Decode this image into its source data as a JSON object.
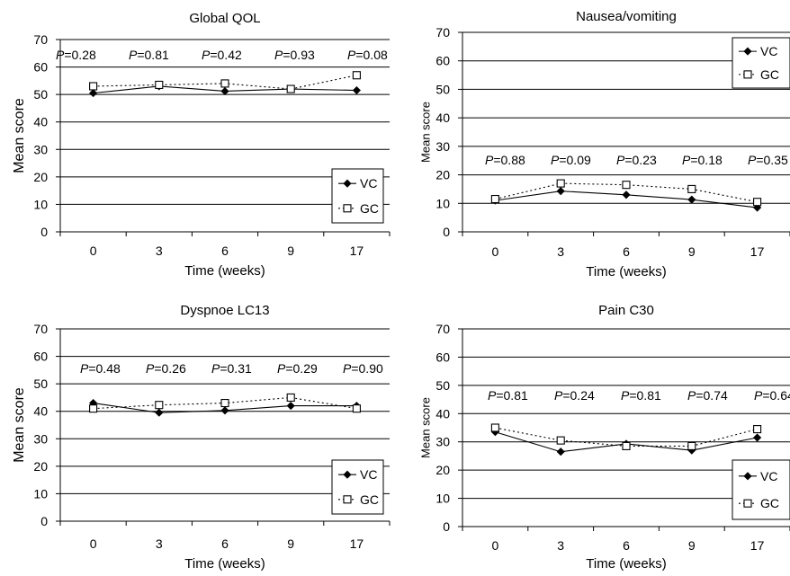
{
  "chart_data": [
    {
      "type": "line",
      "title": "Global QOL",
      "xlabel": "Time (weeks)",
      "ylabel": "Mean score",
      "ylim": [
        0,
        70
      ],
      "yticks": [
        "0",
        "10",
        "20",
        "30",
        "40",
        "50",
        "60",
        "70"
      ],
      "categories": [
        "0",
        "3",
        "6",
        "9",
        "17"
      ],
      "grid": true,
      "legend_position": "bottom-right",
      "p_values": [
        "0.28",
        "0.81",
        "0.42",
        "0.93",
        "0.08"
      ],
      "series": [
        {
          "name": "VC",
          "values": [
            50.5,
            53,
            51.2,
            52,
            51.5
          ]
        },
        {
          "name": "GC",
          "values": [
            53,
            53.5,
            54,
            52,
            57
          ]
        }
      ]
    },
    {
      "type": "line",
      "title": "Nausea/vomiting",
      "xlabel": "Time (weeks)",
      "ylabel": "Mean score",
      "ylim": [
        0,
        70
      ],
      "yticks": [
        "0",
        "10",
        "20",
        "30",
        "40",
        "50",
        "60",
        "70"
      ],
      "categories": [
        "0",
        "3",
        "6",
        "9",
        "17"
      ],
      "grid": true,
      "legend_position": "top-right",
      "p_values": [
        "0.88",
        "0.09",
        "0.23",
        "0.18",
        "0.35"
      ],
      "series": [
        {
          "name": "VC",
          "values": [
            11,
            14.3,
            13,
            11.3,
            8.5
          ]
        },
        {
          "name": "GC",
          "values": [
            11.5,
            17,
            16.5,
            15,
            10.5
          ]
        }
      ]
    },
    {
      "type": "line",
      "title": "Dyspnoe LC13",
      "xlabel": "Time (weeks)",
      "ylabel": "Mean score",
      "ylim": [
        0,
        70
      ],
      "yticks": [
        "0",
        "10",
        "20",
        "30",
        "40",
        "50",
        "60",
        "70"
      ],
      "categories": [
        "0",
        "3",
        "6",
        "9",
        "17"
      ],
      "grid": true,
      "legend_position": "bottom-right",
      "p_values": [
        "0.48",
        "0.26",
        "0.31",
        "0.29",
        "0.90"
      ],
      "series": [
        {
          "name": "VC",
          "values": [
            43,
            39.5,
            40.3,
            42,
            42
          ]
        },
        {
          "name": "GC",
          "values": [
            41,
            42.3,
            43,
            45,
            41
          ]
        }
      ]
    },
    {
      "type": "line",
      "title": "Pain C30",
      "xlabel": "Time (weeks)",
      "ylabel": "Mean score",
      "ylim": [
        0,
        70
      ],
      "yticks": [
        "0",
        "10",
        "20",
        "30",
        "40",
        "50",
        "60",
        "70"
      ],
      "categories": [
        "0",
        "3",
        "6",
        "9",
        "17"
      ],
      "grid": true,
      "legend_position": "bottom-right",
      "p_values": [
        "0.81",
        "0.24",
        "0.81",
        "0.74",
        "0.64"
      ],
      "series": [
        {
          "name": "VC",
          "values": [
            33.5,
            26.5,
            29.3,
            27,
            31.5
          ]
        },
        {
          "name": "GC",
          "values": [
            35,
            30.5,
            28.5,
            28.5,
            34.5
          ]
        }
      ]
    }
  ]
}
